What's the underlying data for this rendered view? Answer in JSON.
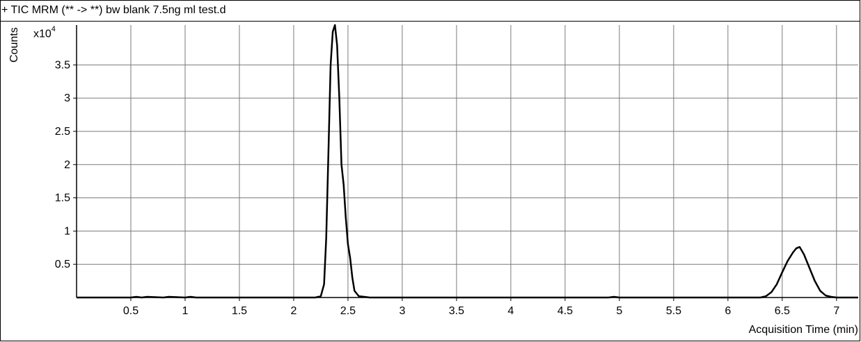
{
  "header": {
    "title": "+ TIC MRM (** -> **) bw blank 7.5ng ml test.d"
  },
  "chart_data": {
    "type": "line",
    "title": "+ TIC MRM (** -> **) bw blank 7.5ng ml test.d",
    "xlabel": "Acquisition Time (min)",
    "ylabel": "Counts",
    "y_multiplier": "x10",
    "y_multiplier_exponent": "4",
    "xlim": [
      0.0,
      7.2
    ],
    "ylim": [
      0.0,
      4.1
    ],
    "x_ticks": [
      0.5,
      1,
      1.5,
      2,
      2.5,
      3,
      3.5,
      4,
      4.5,
      5,
      5.5,
      6,
      6.5,
      7
    ],
    "x_tick_labels": [
      "0.5",
      "1",
      "1.5",
      "2",
      "2.5",
      "3",
      "3.5",
      "4",
      "4.5",
      "5",
      "5.5",
      "6",
      "6.5",
      "7"
    ],
    "y_ticks": [
      0.5,
      1,
      1.5,
      2,
      2.5,
      3,
      3.5
    ],
    "y_tick_labels": [
      "0.5",
      "1",
      "1.5",
      "2",
      "2.5",
      "3",
      "3.5"
    ],
    "grid": true,
    "series": [
      {
        "color": "#000000",
        "x": [
          0.0,
          0.5,
          0.55,
          0.6,
          0.65,
          0.8,
          0.85,
          1.0,
          1.05,
          1.1,
          1.5,
          2.0,
          2.2,
          2.25,
          2.28,
          2.3,
          2.32,
          2.34,
          2.36,
          2.38,
          2.4,
          2.42,
          2.44,
          2.46,
          2.48,
          2.5,
          2.52,
          2.54,
          2.56,
          2.6,
          2.65,
          2.7,
          3.0,
          3.5,
          4.0,
          4.5,
          4.9,
          4.95,
          5.0,
          5.5,
          6.0,
          6.3,
          6.35,
          6.4,
          6.45,
          6.5,
          6.55,
          6.6,
          6.63,
          6.66,
          6.7,
          6.75,
          6.8,
          6.85,
          6.9,
          6.95,
          7.0,
          7.2
        ],
        "y": [
          0.0,
          0.0,
          0.01,
          0.0,
          0.01,
          0.0,
          0.01,
          0.0,
          0.01,
          0.0,
          0.0,
          0.0,
          0.0,
          0.02,
          0.2,
          0.9,
          2.2,
          3.5,
          4.0,
          4.1,
          3.8,
          3.0,
          2.0,
          1.7,
          1.2,
          0.8,
          0.6,
          0.3,
          0.1,
          0.02,
          0.01,
          0.0,
          0.0,
          0.0,
          0.0,
          0.0,
          0.0,
          0.01,
          0.0,
          0.0,
          0.0,
          0.0,
          0.02,
          0.08,
          0.2,
          0.38,
          0.55,
          0.68,
          0.74,
          0.76,
          0.65,
          0.45,
          0.25,
          0.1,
          0.03,
          0.01,
          0.0,
          0.0
        ]
      }
    ]
  }
}
